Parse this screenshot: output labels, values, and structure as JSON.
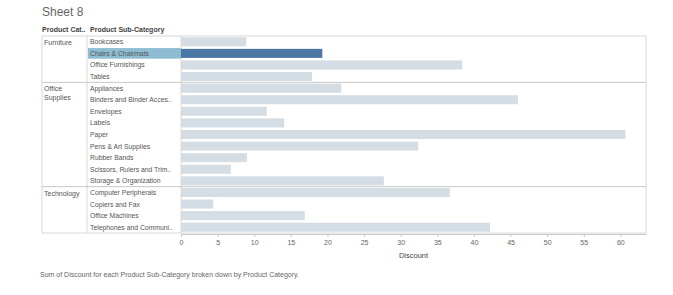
{
  "chart_data": {
    "type": "bar",
    "orientation": "horizontal",
    "title": "Sheet 8",
    "header": [
      "Product Cat..",
      "Product Sub-Category"
    ],
    "x_label": "Discount",
    "caption": "Sum of Discount for each Product Sub-Category broken down by Product Category.",
    "groups": [
      {
        "name": "Furniture",
        "categories": [
          "Bookcases",
          "Chairs & Chairmats",
          "Office Furnishings",
          "Tables"
        ],
        "values": [
          8.9,
          19.3,
          38.4,
          17.9
        ],
        "colors": [
          "#d4dce4",
          "#4a77a3",
          "#d4dce4",
          "#d4dce4"
        ]
      },
      {
        "name": "Office Supplies",
        "categories": [
          "Appliances",
          "Binders and Binder Acces..",
          "Envelopes",
          "Labels",
          "Paper",
          "Pens & Art Supplies",
          "Rubber Bands",
          "Scissors, Rulers and Trim..",
          "Storage & Organization"
        ],
        "values": [
          21.9,
          46.0,
          11.7,
          14.1,
          60.7,
          32.4,
          9.0,
          6.8,
          27.7
        ],
        "colors": [
          "#d4dce4",
          "#d4dce4",
          "#d4dce4",
          "#d4dce4",
          "#d4dce4",
          "#d4dce4",
          "#d4dce4",
          "#d4dce4",
          "#d4dce4"
        ]
      },
      {
        "name": "Technology",
        "categories": [
          "Computer Peripherals",
          "Copiers and Fax",
          "Office Machines",
          "Telephones and Communi.."
        ],
        "values": [
          36.7,
          4.4,
          16.9,
          42.2
        ],
        "colors": [
          "#d4dce4",
          "#d4dce4",
          "#d4dce4",
          "#d4dce4"
        ]
      }
    ],
    "xlim": [
      0,
      63.5
    ],
    "xticks": [
      0,
      5,
      10,
      15,
      20,
      25,
      30,
      35,
      40,
      45,
      50,
      55,
      60
    ],
    "grid": false
  }
}
